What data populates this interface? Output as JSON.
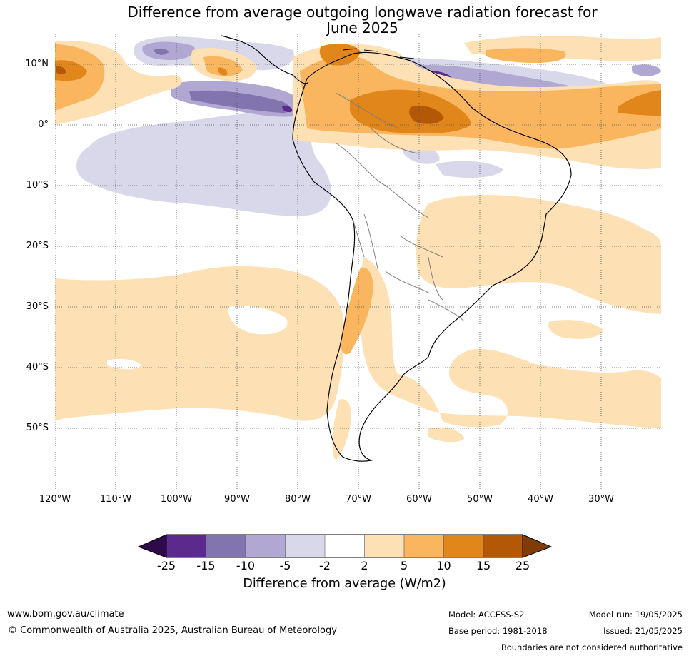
{
  "title_line1": "Difference from average outgoing longwave radiation forecast for",
  "title_line2": "June 2025",
  "lat_labels": [
    "10°N",
    "0°",
    "10°S",
    "20°S",
    "30°S",
    "40°S",
    "50°S"
  ],
  "lon_labels": [
    "120°W",
    "110°W",
    "100°W",
    "90°W",
    "80°W",
    "70°W",
    "60°W",
    "50°W",
    "40°W",
    "30°W"
  ],
  "colorbar": {
    "ticks": [
      "-25",
      "-15",
      "-10",
      "-5",
      "-2",
      "2",
      "5",
      "10",
      "15",
      "25"
    ],
    "colors": [
      "#2d0a4a",
      "#5b2a8c",
      "#8274ae",
      "#b0a8d2",
      "#d8d8ea",
      "#ffffff",
      "#fde0b4",
      "#f9b65e",
      "#e0861a",
      "#b35806",
      "#7f3b08"
    ],
    "label": "Difference from average (W/m2)"
  },
  "footer": {
    "website": "www.bom.gov.au/climate",
    "copyright": "© Commonwealth of Australia 2025, Australian Bureau of Meteorology",
    "model": "Model: ACCESS-S2",
    "base_period": "Base period: 1981-2018",
    "model_run": "Model run: 19/05/2025",
    "issued": "Issued: 21/05/2025",
    "disclaimer": "Boundaries are not considered authoritative"
  }
}
